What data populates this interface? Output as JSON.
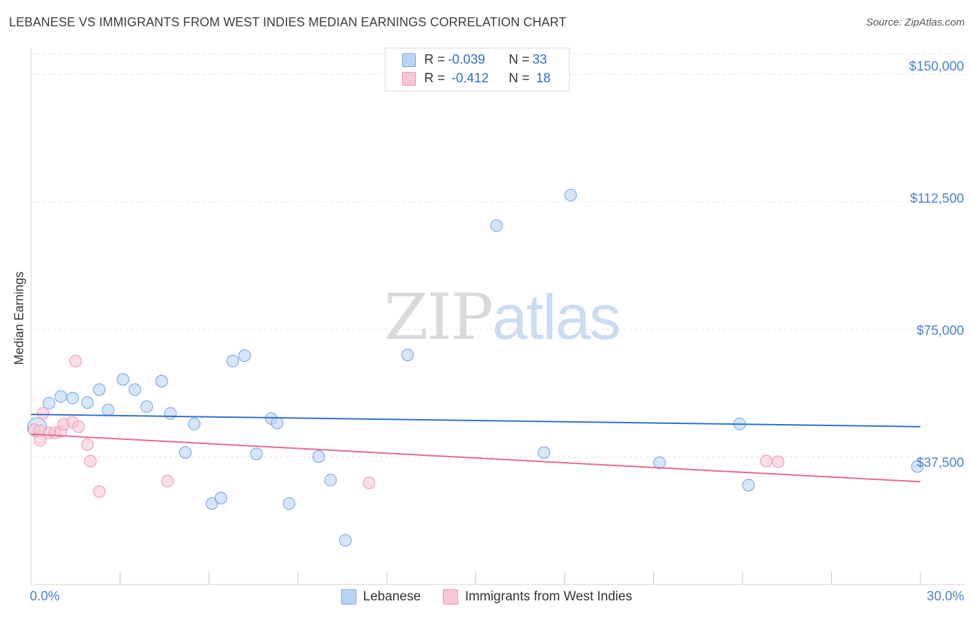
{
  "title": "LEBANESE VS IMMIGRANTS FROM WEST INDIES MEDIAN EARNINGS CORRELATION CHART",
  "source": "Source: ZipAtlas.com",
  "watermark": {
    "zip": "ZIP",
    "atlas": "atlas"
  },
  "legend": {
    "rows": [
      {
        "r_label": "R = ",
        "r_value": "-0.039",
        "n_label": "N = ",
        "n_value": "33"
      },
      {
        "r_label": "R = ",
        "r_value": " -0.412",
        "n_label": "N = ",
        "n_value": " 18"
      }
    ]
  },
  "colors": {
    "lebanese_fill": "#b9d3f6",
    "lebanese_stroke": "#6f9fdc",
    "lebanese_line": "#2f6dd0",
    "westindies_fill": "#f9c6d5",
    "westindies_stroke": "#ec93b0",
    "westindies_line": "#e5688f",
    "tick_label": "#4a7fd1",
    "grid": "#e3e3e3"
  },
  "chart_data": {
    "type": "scatter",
    "title": "LEBANESE VS IMMIGRANTS FROM WEST INDIES MEDIAN EARNINGS CORRELATION CHART",
    "xlabel": "",
    "ylabel": "Median Earnings",
    "xlim": [
      0,
      30
    ],
    "ylim": [
      0,
      156000
    ],
    "x_tick_labels": [
      "0.0%",
      "30.0%"
    ],
    "y_ticks": [
      37500,
      75000,
      112500,
      150000
    ],
    "y_tick_labels": [
      "$37,500",
      "$75,000",
      "$112,500",
      "$150,000"
    ],
    "grid": "horizontal dashed",
    "legend_position": "bottom-center",
    "series": [
      {
        "name": "Lebanese",
        "r": -0.039,
        "n": 33,
        "trend": {
          "x": [
            0,
            30
          ],
          "y": [
            50000,
            46400
          ]
        },
        "points": [
          {
            "x": 0.2,
            "y": 46200,
            "big": true
          },
          {
            "x": 0.6,
            "y": 53300
          },
          {
            "x": 1.0,
            "y": 55300
          },
          {
            "x": 1.4,
            "y": 54800
          },
          {
            "x": 1.9,
            "y": 53500
          },
          {
            "x": 2.3,
            "y": 57300
          },
          {
            "x": 2.6,
            "y": 51300
          },
          {
            "x": 3.1,
            "y": 60300
          },
          {
            "x": 3.5,
            "y": 57300
          },
          {
            "x": 3.9,
            "y": 52300
          },
          {
            "x": 4.4,
            "y": 59800
          },
          {
            "x": 4.7,
            "y": 50300
          },
          {
            "x": 5.2,
            "y": 38800
          },
          {
            "x": 5.5,
            "y": 47200
          },
          {
            "x": 6.1,
            "y": 23800
          },
          {
            "x": 6.4,
            "y": 25400
          },
          {
            "x": 6.8,
            "y": 65700
          },
          {
            "x": 7.2,
            "y": 67300
          },
          {
            "x": 7.6,
            "y": 38400
          },
          {
            "x": 8.1,
            "y": 48800
          },
          {
            "x": 8.3,
            "y": 47500
          },
          {
            "x": 8.7,
            "y": 23800
          },
          {
            "x": 9.7,
            "y": 37600
          },
          {
            "x": 10.1,
            "y": 30700
          },
          {
            "x": 10.6,
            "y": 13000
          },
          {
            "x": 12.7,
            "y": 67500
          },
          {
            "x": 15.7,
            "y": 105500
          },
          {
            "x": 17.3,
            "y": 38800
          },
          {
            "x": 18.2,
            "y": 114500
          },
          {
            "x": 21.2,
            "y": 35800
          },
          {
            "x": 23.9,
            "y": 47200
          },
          {
            "x": 24.2,
            "y": 29200
          },
          {
            "x": 29.9,
            "y": 34700
          }
        ]
      },
      {
        "name": "Immigrants from West Indies",
        "r": -0.412,
        "n": 18,
        "trend": {
          "x": [
            0,
            30
          ],
          "y": [
            44200,
            30200
          ]
        },
        "points": [
          {
            "x": 0.1,
            "y": 45500
          },
          {
            "x": 0.3,
            "y": 45200
          },
          {
            "x": 0.3,
            "y": 42400
          },
          {
            "x": 0.4,
            "y": 50300
          },
          {
            "x": 0.6,
            "y": 44600
          },
          {
            "x": 0.8,
            "y": 44600
          },
          {
            "x": 1.0,
            "y": 45000
          },
          {
            "x": 1.1,
            "y": 47100
          },
          {
            "x": 1.4,
            "y": 47700
          },
          {
            "x": 1.5,
            "y": 65700
          },
          {
            "x": 1.6,
            "y": 46400
          },
          {
            "x": 1.9,
            "y": 41100
          },
          {
            "x": 2.0,
            "y": 36300
          },
          {
            "x": 2.3,
            "y": 27300
          },
          {
            "x": 4.6,
            "y": 30400
          },
          {
            "x": 11.4,
            "y": 29900
          },
          {
            "x": 24.8,
            "y": 36300
          },
          {
            "x": 25.2,
            "y": 36100
          }
        ]
      }
    ]
  }
}
